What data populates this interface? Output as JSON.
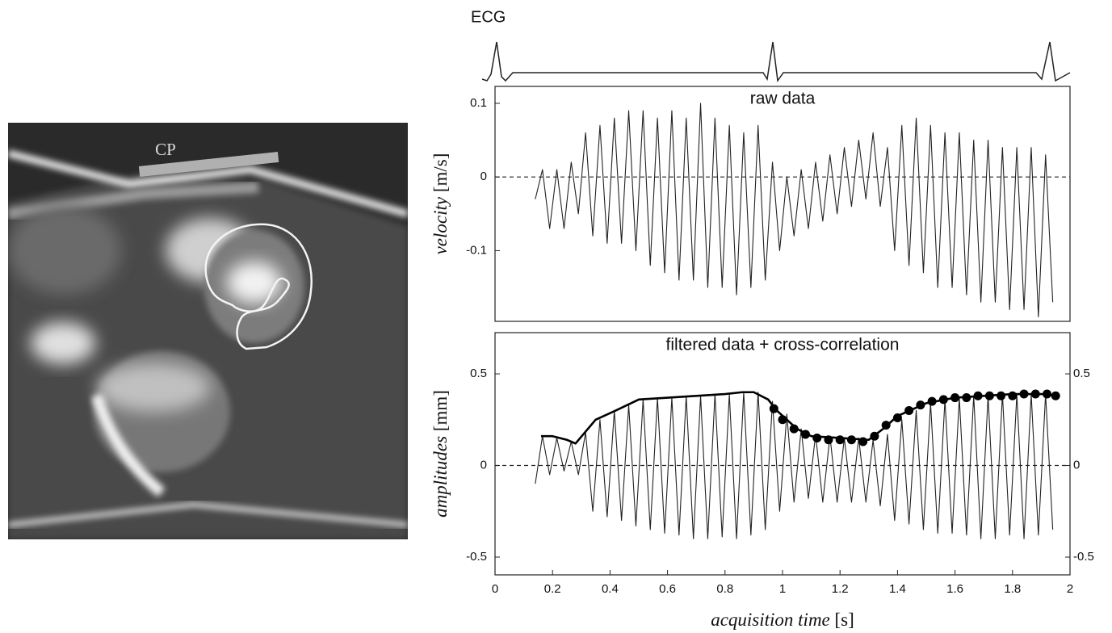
{
  "image": {
    "label": "CP"
  },
  "ecg": {
    "label": "ECG"
  },
  "chart_data": [
    {
      "type": "line",
      "title": "raw data",
      "ylabel": {
        "name": "velocity",
        "unit": "[m/s]"
      },
      "xlim": [
        0,
        2
      ],
      "ylim": [
        -0.196,
        0.123
      ],
      "yticks": [
        0.1,
        0,
        -0.1
      ],
      "reference_line": 0,
      "series": [
        {
          "type": "line",
          "line_style": "thin",
          "color": "#222",
          "x": [
            0.14,
            0.165,
            0.19,
            0.215,
            0.24,
            0.265,
            0.29,
            0.315,
            0.34,
            0.365,
            0.39,
            0.415,
            0.44,
            0.465,
            0.49,
            0.515,
            0.54,
            0.565,
            0.59,
            0.615,
            0.64,
            0.665,
            0.69,
            0.715,
            0.74,
            0.765,
            0.79,
            0.815,
            0.84,
            0.865,
            0.89,
            0.915,
            0.94,
            0.965,
            0.99,
            1.015,
            1.04,
            1.065,
            1.09,
            1.115,
            1.14,
            1.165,
            1.19,
            1.215,
            1.24,
            1.265,
            1.29,
            1.315,
            1.34,
            1.365,
            1.39,
            1.415,
            1.44,
            1.465,
            1.49,
            1.515,
            1.54,
            1.565,
            1.59,
            1.615,
            1.64,
            1.665,
            1.69,
            1.715,
            1.74,
            1.765,
            1.79,
            1.815,
            1.84,
            1.865,
            1.89,
            1.915,
            1.94
          ],
          "values": [
            -0.03,
            0.01,
            -0.07,
            0.01,
            -0.07,
            0.02,
            -0.05,
            0.06,
            -0.08,
            0.07,
            -0.09,
            0.08,
            -0.09,
            0.09,
            -0.1,
            0.09,
            -0.12,
            0.08,
            -0.13,
            0.09,
            -0.14,
            0.08,
            -0.14,
            0.1,
            -0.15,
            0.08,
            -0.15,
            0.07,
            -0.16,
            0.06,
            -0.15,
            0.07,
            -0.14,
            0.02,
            -0.1,
            0.0,
            -0.08,
            0.01,
            -0.07,
            0.02,
            -0.06,
            0.03,
            -0.05,
            0.04,
            -0.04,
            0.05,
            -0.03,
            0.06,
            -0.04,
            0.04,
            -0.1,
            0.07,
            -0.12,
            0.08,
            -0.13,
            0.07,
            -0.15,
            0.06,
            -0.15,
            0.06,
            -0.16,
            0.05,
            -0.17,
            0.05,
            -0.17,
            0.04,
            -0.18,
            0.04,
            -0.18,
            0.04,
            -0.19,
            0.03,
            -0.17
          ]
        }
      ]
    },
    {
      "type": "line",
      "title": "filtered data + cross-correlation",
      "ylabel": {
        "name": "amplitudes",
        "unit": "[mm]"
      },
      "xlabel": {
        "name": "acquisition time",
        "unit": "[s]"
      },
      "xlim": [
        0,
        2
      ],
      "xticks": [
        0,
        0.2,
        0.4,
        0.6,
        0.8,
        1,
        1.2,
        1.4,
        1.6,
        1.8,
        2
      ],
      "ylim": [
        -0.597,
        0.725
      ],
      "yticks": [
        0.5,
        0,
        -0.5
      ],
      "y2lim": [
        -0.597,
        0.725
      ],
      "y2ticks": [
        0.5,
        0,
        -0.5
      ],
      "reference_line": 0,
      "series": [
        {
          "type": "line",
          "line_style": "thin",
          "color": "#222",
          "x": [
            0.14,
            0.165,
            0.19,
            0.215,
            0.24,
            0.265,
            0.29,
            0.315,
            0.34,
            0.365,
            0.39,
            0.415,
            0.44,
            0.465,
            0.49,
            0.515,
            0.54,
            0.565,
            0.59,
            0.615,
            0.64,
            0.665,
            0.69,
            0.715,
            0.74,
            0.765,
            0.79,
            0.815,
            0.84,
            0.865,
            0.89,
            0.915,
            0.94,
            0.965,
            0.99,
            1.015,
            1.04,
            1.065,
            1.09,
            1.115,
            1.14,
            1.165,
            1.19,
            1.215,
            1.24,
            1.265,
            1.29,
            1.315,
            1.34,
            1.365,
            1.39,
            1.415,
            1.44,
            1.465,
            1.49,
            1.515,
            1.54,
            1.565,
            1.59,
            1.615,
            1.64,
            1.665,
            1.69,
            1.715,
            1.74,
            1.765,
            1.79,
            1.815,
            1.84,
            1.865,
            1.89,
            1.915,
            1.94
          ],
          "values": [
            -0.1,
            0.16,
            -0.05,
            0.15,
            -0.03,
            0.13,
            -0.05,
            0.18,
            -0.25,
            0.25,
            -0.28,
            0.3,
            -0.3,
            0.33,
            -0.33,
            0.36,
            -0.35,
            0.37,
            -0.37,
            0.37,
            -0.38,
            0.38,
            -0.4,
            0.38,
            -0.4,
            0.39,
            -0.39,
            0.39,
            -0.4,
            0.4,
            -0.38,
            0.4,
            -0.35,
            0.35,
            -0.25,
            0.28,
            -0.2,
            0.2,
            -0.18,
            0.17,
            -0.2,
            0.16,
            -0.2,
            0.15,
            -0.2,
            0.15,
            -0.2,
            0.14,
            -0.22,
            0.17,
            -0.3,
            0.25,
            -0.32,
            0.3,
            -0.35,
            0.34,
            -0.37,
            0.36,
            -0.37,
            0.37,
            -0.38,
            0.38,
            -0.4,
            0.38,
            -0.4,
            0.39,
            -0.38,
            0.39,
            -0.4,
            0.39,
            -0.38,
            0.39,
            -0.35
          ]
        },
        {
          "type": "line",
          "line_style": "bold",
          "color": "#000",
          "x": [
            0.16,
            0.2,
            0.25,
            0.28,
            0.35,
            0.42,
            0.5,
            0.6,
            0.7,
            0.8,
            0.86,
            0.9,
            0.95,
            0.98,
            1.05,
            1.1,
            1.2,
            1.3,
            1.35,
            1.4,
            1.5,
            1.6,
            1.7,
            1.8,
            1.9,
            1.95
          ],
          "values": [
            0.16,
            0.16,
            0.14,
            0.12,
            0.25,
            0.3,
            0.36,
            0.37,
            0.38,
            0.39,
            0.4,
            0.4,
            0.36,
            0.3,
            0.2,
            0.16,
            0.15,
            0.14,
            0.2,
            0.27,
            0.34,
            0.37,
            0.38,
            0.39,
            0.39,
            0.38
          ]
        },
        {
          "type": "scatter",
          "color": "#000",
          "x": [
            0.97,
            1.0,
            1.04,
            1.08,
            1.12,
            1.16,
            1.2,
            1.24,
            1.28,
            1.32,
            1.36,
            1.4,
            1.44,
            1.48,
            1.52,
            1.56,
            1.6,
            1.64,
            1.68,
            1.72,
            1.76,
            1.8,
            1.84,
            1.88,
            1.92,
            1.95
          ],
          "values": [
            0.31,
            0.25,
            0.2,
            0.17,
            0.15,
            0.14,
            0.14,
            0.14,
            0.13,
            0.16,
            0.22,
            0.26,
            0.3,
            0.33,
            0.35,
            0.36,
            0.37,
            0.37,
            0.38,
            0.38,
            0.38,
            0.38,
            0.39,
            0.39,
            0.39,
            0.38
          ]
        }
      ]
    }
  ]
}
